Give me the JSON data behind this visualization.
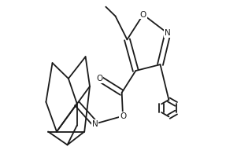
{
  "bg_color": "#ffffff",
  "line_color": "#1a1a1a",
  "line_width": 1.3,
  "figsize": [
    2.87,
    1.96
  ],
  "dpi": 100,
  "xlim": [
    0,
    2.87
  ],
  "ylim": [
    0,
    1.96
  ]
}
